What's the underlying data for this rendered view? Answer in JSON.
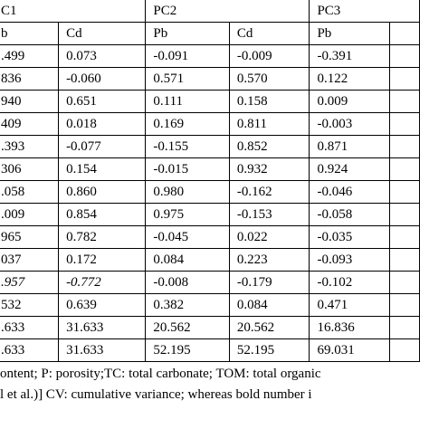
{
  "table": {
    "header_groups": [
      "C1",
      "PC2",
      "PC3"
    ],
    "subheaders": [
      "b",
      "Cd",
      "Pb",
      "Cd",
      "Pb"
    ],
    "rows": [
      [
        ".499",
        "0.073",
        "-0.091",
        "-0.009",
        "-0.391"
      ],
      [
        "836",
        "-0.060",
        "0.571",
        "0.570",
        "0.122"
      ],
      [
        "940",
        "0.651",
        "0.111",
        "0.158",
        "0.009"
      ],
      [
        "409",
        "0.018",
        "0.169",
        "0.811",
        "-0.003"
      ],
      [
        ".393",
        "-0.077",
        "-0.155",
        "0.852",
        "0.871"
      ],
      [
        "306",
        "0.154",
        "-0.015",
        "0.932",
        "0.924"
      ],
      [
        ".058",
        "0.860",
        "0.980",
        "-0.162",
        "-0.046"
      ],
      [
        ".009",
        "0.854",
        "0.975",
        "-0.153",
        "-0.058"
      ],
      [
        "965",
        "0.782",
        "-0.045",
        "0.022",
        "-0.035"
      ],
      [
        "037",
        "0.172",
        "0.084",
        "0.223",
        "-0.093"
      ],
      [
        ".957",
        "-0.772",
        "-0.008",
        "-0.179",
        "-0.102"
      ],
      [
        "532",
        "0.639",
        "0.382",
        "0.084",
        "0.471"
      ],
      [
        ".633",
        "31.633",
        "20.562",
        "20.562",
        "16.836"
      ],
      [
        ".633",
        "31.633",
        "52.195",
        "52.195",
        "69.031"
      ]
    ]
  },
  "footnotes": [
    "ontent; P: porosity;TC: total carbonate; TOM: total organic",
    "l et al.)] CV: cumulative variance; whereas bold number i"
  ]
}
